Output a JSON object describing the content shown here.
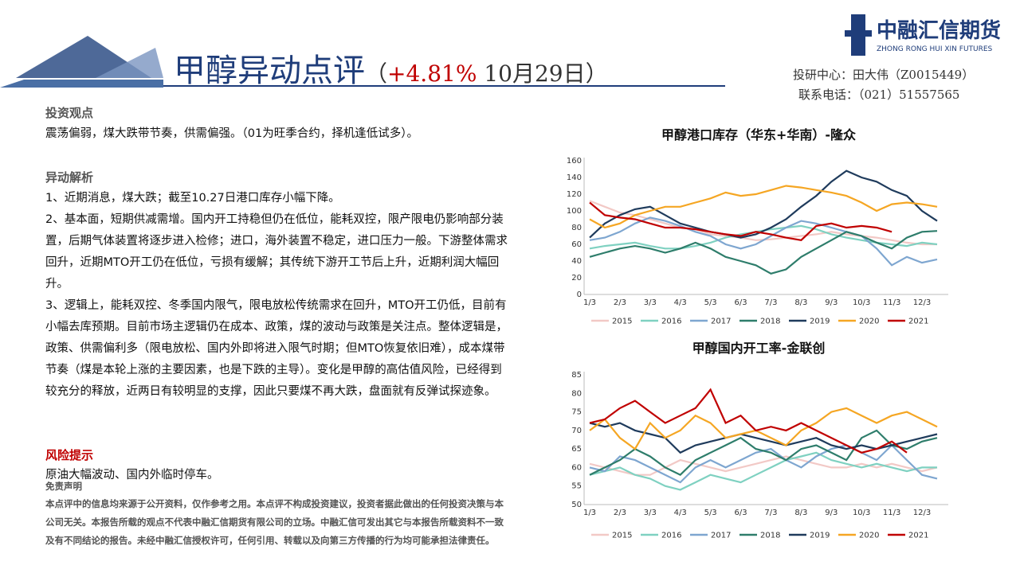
{
  "header": {
    "title": "甲醇异动点评",
    "subtitle_open": "（",
    "change": "+4.81%",
    "subtitle_date": " 10月29日）",
    "logo_name": "中融汇信期货",
    "logo_en": "ZHONG RONG HUI XIN FUTURES",
    "contact": [
      "投研中心：田大伟（Z0015449）",
      "联系电话：（021）51557565"
    ]
  },
  "sections": [
    {
      "heading": "投资观点",
      "paragraphs": [
        "震荡偏弱，煤大跌带节奏，供需偏强。（01为旺季合约，择机逢低试多）。"
      ]
    },
    {
      "heading": "异动解析",
      "paragraphs": [
        "1、近期消息，煤大跌；截至10.27日港口库存小幅下降。",
        "2、基本面，短期供减需增。国内开工持稳但仍在低位，能耗双控，限产限电仍影响部分装置，后期气体装置将逐步进入检修；进口，海外装置不稳定，进口压力一般。下游整体需求回升，近期MTO开工仍在低位，亏损有缓解；其传统下游开工节后上升，近期利润大幅回升。",
        "3、逻辑上，能耗双控、冬季国内限气，限电放松传统需求在回升，MTO开工仍低，目前有小幅去库预期。目前市场主逻辑仍在成本、政策，煤的波动与政策是关注点。整体逻辑是，政策、供需偏利多（限电放松、国内外即将进入限气时期；但MTO恢复依旧难），成本煤带节奏（煤是本轮上涨的主要因素，也是下跌的主导）。变化是甲醇的高估值风险，已经得到较充分的释放，近两日有较明显的支撑，因此只要煤不再大跌，盘面就有反弹试探迹象。"
      ]
    },
    {
      "heading": "风险提示",
      "paragraphs": [
        "原油大幅波动、国内外临时停车。"
      ]
    }
  ],
  "disclaimer": {
    "heading": "免责声明",
    "text": "本点评中的信息均来源于公开资料，仅作参考之用。本点评不构成投资建议，投资者据此做出的任何投资决策与本公司无关。本报告所载的观点不代表中融汇信期货有限公司的立场。中融汇信可发出其它与本报告所载资料不一致及有不同结论的报告。未经中融汇信授权许可，任何引用、转载以及向第三方传播的行为均可能承担法律责任。"
  },
  "chart_data": [
    {
      "type": "line",
      "title": "甲醇港口库存（华东+华南）-隆众",
      "categories": [
        "1/3",
        null,
        "2/3",
        null,
        "3/3",
        null,
        "4/3",
        null,
        "5/3",
        null,
        "6/3",
        null,
        "7/3",
        null,
        "8/3",
        null,
        "9/3",
        null,
        "10/3",
        null,
        "11/3",
        null,
        "12/3",
        null
      ],
      "ylim": [
        0,
        160
      ],
      "yticks": [
        0,
        20,
        40,
        60,
        80,
        100,
        120,
        140,
        160
      ],
      "grid": false,
      "series": [
        {
          "name": "2015",
          "color": "#f2c9c6",
          "values": [
            112,
            105,
            98,
            95,
            90,
            85,
            80,
            78,
            72,
            70,
            68,
            65,
            66,
            68,
            70,
            72,
            75,
            72,
            70,
            68,
            65,
            62,
            60,
            60
          ]
        },
        {
          "name": "2016",
          "color": "#7fd1c1",
          "values": [
            55,
            58,
            60,
            62,
            58,
            55,
            55,
            58,
            62,
            68,
            72,
            75,
            78,
            80,
            82,
            78,
            72,
            68,
            65,
            62,
            60,
            58,
            62,
            60
          ]
        },
        {
          "name": "2017",
          "color": "#7ea6d0",
          "values": [
            65,
            68,
            75,
            85,
            92,
            88,
            82,
            75,
            70,
            60,
            55,
            60,
            70,
            80,
            88,
            85,
            80,
            75,
            70,
            55,
            35,
            45,
            38,
            42
          ]
        },
        {
          "name": "2018",
          "color": "#2e7d6b",
          "values": [
            45,
            50,
            55,
            58,
            55,
            50,
            55,
            62,
            55,
            45,
            40,
            35,
            25,
            30,
            45,
            55,
            65,
            75,
            70,
            62,
            55,
            68,
            75,
            76
          ]
        },
        {
          "name": "2019",
          "color": "#1f3b5c",
          "values": [
            68,
            85,
            95,
            102,
            105,
            95,
            85,
            80,
            75,
            72,
            68,
            72,
            80,
            90,
            105,
            118,
            135,
            148,
            140,
            135,
            125,
            118,
            100,
            88
          ]
        },
        {
          "name": "2020",
          "color": "#f5a623",
          "values": [
            90,
            80,
            85,
            95,
            100,
            105,
            105,
            110,
            115,
            122,
            118,
            120,
            125,
            130,
            128,
            125,
            122,
            118,
            110,
            100,
            108,
            110,
            108,
            105
          ]
        },
        {
          "name": "2021",
          "color": "#c00000",
          "values": [
            110,
            95,
            92,
            90,
            85,
            80,
            80,
            78,
            75,
            72,
            70,
            75,
            72,
            68,
            65,
            82,
            85,
            80,
            82,
            80,
            75,
            null,
            null,
            null
          ]
        }
      ]
    },
    {
      "type": "line",
      "title": "甲醇国内开工率-金联创",
      "categories": [
        "1/3",
        null,
        "2/3",
        null,
        "3/3",
        null,
        "4/3",
        null,
        "5/3",
        null,
        "6/3",
        null,
        "7/3",
        null,
        "8/3",
        null,
        "9/3",
        null,
        "10/3",
        null,
        "11/3",
        null,
        "12/3",
        null
      ],
      "ylim": [
        50,
        85
      ],
      "yticks": [
        50,
        55,
        60,
        65,
        70,
        75,
        80,
        85
      ],
      "grid": false,
      "series": [
        {
          "name": "2015",
          "color": "#f2c9c6",
          "values": [
            61,
            60,
            59,
            58,
            58,
            60,
            62,
            61,
            60,
            59,
            60,
            61,
            62,
            63,
            62,
            61,
            60,
            60,
            61,
            60,
            61,
            60,
            59,
            60
          ]
        },
        {
          "name": "2016",
          "color": "#7fd1c1",
          "values": [
            58,
            59,
            60,
            58,
            57,
            55,
            54,
            56,
            58,
            57,
            56,
            58,
            60,
            62,
            63,
            64,
            62,
            61,
            60,
            61,
            60,
            59,
            60,
            60
          ]
        },
        {
          "name": "2017",
          "color": "#7ea6d0",
          "values": [
            60,
            59,
            63,
            62,
            60,
            58,
            56,
            60,
            62,
            60,
            62,
            64,
            65,
            62,
            60,
            63,
            65,
            66,
            64,
            62,
            66,
            62,
            58,
            57
          ]
        },
        {
          "name": "2018",
          "color": "#2e7d6b",
          "values": [
            58,
            60,
            62,
            65,
            63,
            60,
            58,
            62,
            64,
            66,
            68,
            65,
            64,
            62,
            65,
            66,
            64,
            62,
            68,
            70,
            66,
            65,
            67,
            68
          ]
        },
        {
          "name": "2019",
          "color": "#1f3b5c",
          "values": [
            72,
            71,
            72,
            70,
            69,
            68,
            64,
            66,
            67,
            68,
            69,
            68,
            67,
            66,
            67,
            68,
            66,
            65,
            66,
            65,
            66,
            67,
            68,
            69
          ]
        },
        {
          "name": "2020",
          "color": "#f5a623",
          "values": [
            70,
            73,
            68,
            65,
            72,
            68,
            70,
            74,
            72,
            68,
            69,
            70,
            68,
            66,
            70,
            72,
            75,
            76,
            74,
            72,
            74,
            75,
            73,
            71
          ]
        },
        {
          "name": "2021",
          "color": "#c00000",
          "values": [
            72,
            73,
            76,
            78,
            75,
            72,
            74,
            76,
            81,
            72,
            74,
            70,
            71,
            70,
            72,
            70,
            68,
            66,
            64,
            65,
            67,
            64,
            null,
            null
          ]
        }
      ]
    }
  ]
}
